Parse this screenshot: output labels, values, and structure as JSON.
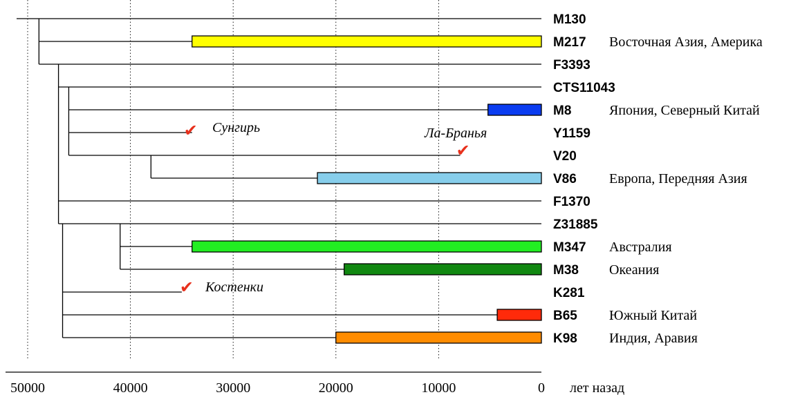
{
  "axis": {
    "ticks": [
      "50000",
      "40000",
      "30000",
      "20000",
      "10000",
      "0"
    ],
    "unit_label": "лет назад"
  },
  "clades": [
    {
      "id": "M130",
      "label": "M130",
      "region": "",
      "color": "",
      "bar_from": null
    },
    {
      "id": "M217",
      "label": "M217",
      "region": "Восточная Азия, Америка",
      "color": "#ffff00",
      "bar_from": 34000
    },
    {
      "id": "F3393",
      "label": "F3393",
      "region": "",
      "color": "",
      "bar_from": null
    },
    {
      "id": "CTS11043",
      "label": "CTS11043",
      "region": "",
      "color": "",
      "bar_from": null
    },
    {
      "id": "M8",
      "label": "M8",
      "region": "Япония, Северный Китай",
      "color": "#0a3cf0",
      "bar_from": 5200
    },
    {
      "id": "Y1159",
      "label": "Y1159",
      "region": "",
      "color": "",
      "bar_from": null
    },
    {
      "id": "V20",
      "label": "V20",
      "region": "",
      "color": "",
      "bar_from": null
    },
    {
      "id": "V86",
      "label": "V86",
      "region": "Европа, Передняя Азия",
      "color": "#87ceeb",
      "bar_from": 21800
    },
    {
      "id": "F1370",
      "label": "F1370",
      "region": "",
      "color": "",
      "bar_from": null
    },
    {
      "id": "Z31885",
      "label": "Z31885",
      "region": "",
      "color": "",
      "bar_from": null
    },
    {
      "id": "M347",
      "label": "M347",
      "region": "Австралия",
      "color": "#22ee22",
      "bar_from": 34000
    },
    {
      "id": "M38",
      "label": "M38",
      "region": "Океания",
      "color": "#118811",
      "bar_from": 19200
    },
    {
      "id": "K281",
      "label": "K281",
      "region": "",
      "color": "",
      "bar_from": null
    },
    {
      "id": "B65",
      "label": "B65",
      "region": "Южный Китай",
      "color": "#ff2a0a",
      "bar_from": 4300
    },
    {
      "id": "K98",
      "label": "K98",
      "region": "Индия, Аравия",
      "color": "#ff8c00",
      "bar_from": 20000
    }
  ],
  "sites": [
    {
      "label": "Сунгирь",
      "branch": "Y1159",
      "age": 34000
    },
    {
      "label": "Ла-Бранья",
      "branch": "V20",
      "age": 7900
    },
    {
      "label": "Костенки",
      "branch": "K281",
      "age": 35000
    }
  ],
  "check_glyph": "✔"
}
